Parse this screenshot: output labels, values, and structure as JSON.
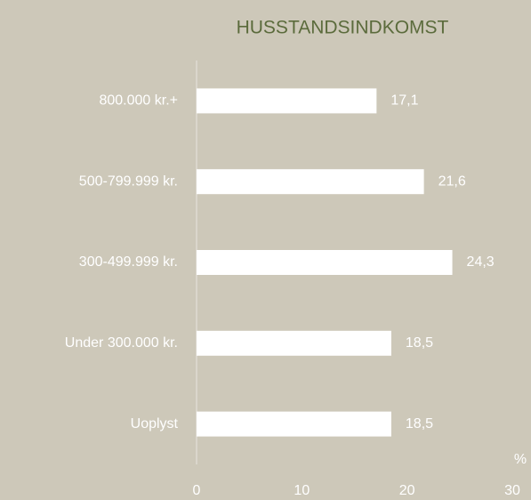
{
  "chart_data": {
    "type": "hbar",
    "title": "HUSSTANDSINDKOMST",
    "categories": [
      "800.000 kr.+",
      "500-799.999 kr.",
      "300-499.999 kr.",
      "Under 300.000 kr.",
      "Uoplyst"
    ],
    "values": [
      17.1,
      21.6,
      24.3,
      18.5,
      18.5
    ],
    "value_labels": [
      "17,1",
      "21,6",
      "24,3",
      "18,5",
      "18,5"
    ],
    "color": "#ffffff",
    "x_label": "%",
    "xlim": [
      0,
      30
    ],
    "xticks": [
      0,
      10,
      20,
      30
    ],
    "grid": false
  }
}
